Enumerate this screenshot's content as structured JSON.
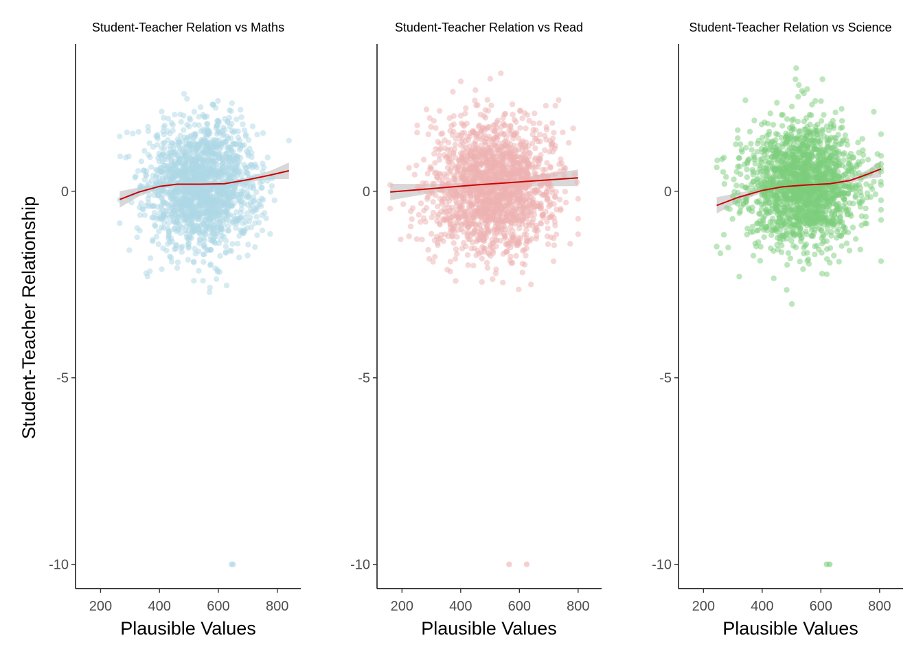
{
  "figure": {
    "ylabel": "Student-Teacher Relationship"
  },
  "chart_data": [
    {
      "type": "scatter",
      "title": "Student-Teacher Relation vs Maths",
      "xlabel": "Plausible Values",
      "ylabel": "Student-Teacher Relationship",
      "xlim": [
        115,
        880
      ],
      "ylim": [
        -10.65,
        3.95
      ],
      "x_ticks": [
        200,
        400,
        600,
        800
      ],
      "y_ticks": [
        0,
        -5,
        -10
      ],
      "grid": false,
      "point_color": "#add8e6",
      "smooth_color": "#cc0000",
      "band_color": "#bebebe",
      "cloud": {
        "x_mean": 545,
        "x_sd": 95,
        "x_min": 265,
        "x_max": 840,
        "y_mean": 0.15,
        "y_sd": 0.85,
        "y_min": -3.65,
        "y_max": 3.3
      },
      "outliers": [
        {
          "x": 645,
          "y": -10
        },
        {
          "x": 650,
          "y": -10
        }
      ],
      "smooth": {
        "x": [
          265,
          330,
          400,
          460,
          540,
          620,
          700,
          780,
          840
        ],
        "y": [
          -0.22,
          -0.02,
          0.13,
          0.19,
          0.19,
          0.2,
          0.31,
          0.44,
          0.55
        ]
      }
    },
    {
      "type": "scatter",
      "title": "Student-Teacher Relation vs Read",
      "xlabel": "Plausible Values",
      "ylabel": "",
      "xlim": [
        115,
        880
      ],
      "ylim": [
        -10.65,
        3.95
      ],
      "x_ticks": [
        200,
        400,
        600,
        800
      ],
      "y_ticks": [
        0,
        -5,
        -10
      ],
      "grid": false,
      "point_color": "#eeb1b1",
      "smooth_color": "#cc0000",
      "band_color": "#bebebe",
      "cloud": {
        "x_mean": 510,
        "x_sd": 105,
        "x_min": 160,
        "x_max": 800,
        "y_mean": 0.1,
        "y_sd": 0.9,
        "y_min": -3.6,
        "y_max": 3.3
      },
      "outliers": [
        {
          "x": 565,
          "y": -10
        },
        {
          "x": 625,
          "y": -10
        }
      ],
      "smooth": {
        "x": [
          160,
          300,
          450,
          600,
          800
        ],
        "y": [
          -0.02,
          0.07,
          0.17,
          0.25,
          0.36
        ]
      }
    },
    {
      "type": "scatter",
      "title": "Student-Teacher Relation vs Science",
      "xlabel": "Plausible Values",
      "ylabel": "",
      "xlim": [
        115,
        880
      ],
      "ylim": [
        -10.65,
        3.95
      ],
      "x_ticks": [
        200,
        400,
        600,
        800
      ],
      "y_ticks": [
        0,
        -5,
        -10
      ],
      "grid": false,
      "point_color": "#7ccd7c",
      "smooth_color": "#cc0000",
      "band_color": "#bebebe",
      "cloud": {
        "x_mean": 540,
        "x_sd": 100,
        "x_min": 245,
        "x_max": 805,
        "y_mean": 0.15,
        "y_sd": 0.85,
        "y_min": -3.65,
        "y_max": 3.3
      },
      "outliers": [
        {
          "x": 620,
          "y": -10
        },
        {
          "x": 630,
          "y": -10
        }
      ],
      "smooth": {
        "x": [
          245,
          320,
          400,
          470,
          550,
          630,
          700,
          760,
          805
        ],
        "y": [
          -0.38,
          -0.16,
          0.02,
          0.12,
          0.17,
          0.2,
          0.29,
          0.46,
          0.6
        ]
      }
    }
  ]
}
